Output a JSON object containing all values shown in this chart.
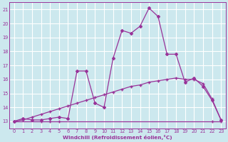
{
  "xlabel": "Windchill (Refroidissement éolien,°C)",
  "bg_color": "#cce8ee",
  "grid_color": "#ffffff",
  "line_color": "#993399",
  "xlim": [
    -0.5,
    23.5
  ],
  "ylim": [
    12.5,
    21.5
  ],
  "xticks": [
    0,
    1,
    2,
    3,
    4,
    5,
    6,
    7,
    8,
    9,
    10,
    11,
    12,
    13,
    14,
    15,
    16,
    17,
    18,
    19,
    20,
    21,
    22,
    23
  ],
  "yticks": [
    13,
    14,
    15,
    16,
    17,
    18,
    19,
    20,
    21
  ],
  "curve1_x": [
    0,
    1,
    2,
    3,
    4,
    5,
    6,
    7,
    8,
    9,
    10,
    11,
    12,
    13,
    14,
    15,
    16,
    17,
    18,
    19,
    20,
    21,
    22,
    23
  ],
  "curve1_y": [
    13.0,
    13.2,
    13.1,
    13.1,
    13.2,
    13.3,
    13.2,
    16.6,
    16.6,
    14.3,
    14.0,
    17.5,
    19.5,
    19.3,
    19.8,
    21.1,
    20.5,
    17.8,
    17.8,
    15.8,
    16.1,
    15.5,
    14.5,
    13.1
  ],
  "curve2_x": [
    0,
    1,
    2,
    3,
    4,
    5,
    6,
    7,
    8,
    9,
    10,
    11,
    12,
    13,
    14,
    15,
    16,
    17,
    18,
    19,
    20,
    21,
    22,
    23
  ],
  "curve2_y": [
    13.0,
    13.1,
    13.3,
    13.5,
    13.7,
    13.9,
    14.1,
    14.3,
    14.5,
    14.7,
    14.9,
    15.1,
    15.3,
    15.5,
    15.6,
    15.8,
    15.9,
    16.0,
    16.1,
    16.0,
    16.0,
    15.7,
    14.6,
    13.1
  ],
  "curve3_x": [
    0,
    3,
    4,
    5,
    22,
    23
  ],
  "curve3_y": [
    13.0,
    13.0,
    13.0,
    13.0,
    13.0,
    13.0
  ],
  "curve3_markers_x": [
    0,
    3,
    4,
    5,
    22,
    23
  ],
  "curve3_markers_y": [
    13.0,
    13.0,
    13.0,
    13.0,
    13.0,
    13.0
  ]
}
